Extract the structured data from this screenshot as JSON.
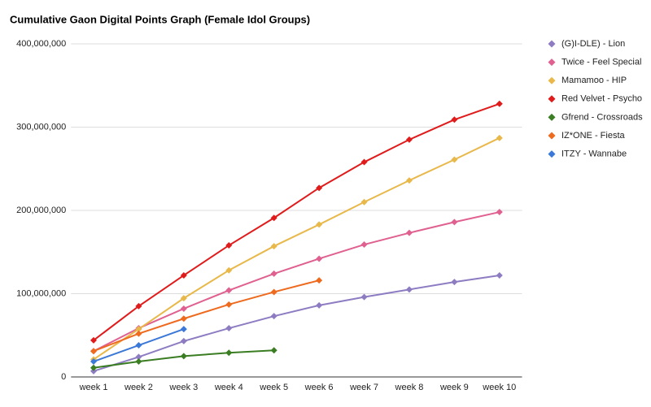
{
  "chart_data": {
    "type": "line",
    "title": "Cumulative Gaon Digital Points Graph (Female Idol Groups)",
    "categories": [
      "week 1",
      "week 2",
      "week 3",
      "week 4",
      "week 5",
      "week 6",
      "week 7",
      "week 8",
      "week 9",
      "week 10"
    ],
    "series": [
      {
        "name": "(G)I-DLE) - Lion",
        "color": "#8e7cc3",
        "values": [
          7000000,
          24000000,
          43000000,
          58500000,
          73000000,
          86000000,
          96000000,
          105000000,
          114000000,
          122000000
        ]
      },
      {
        "name": "Twice - Feel Special",
        "color": "#e06090",
        "values": [
          31000000,
          58500000,
          82000000,
          104000000,
          124000000,
          142000000,
          159000000,
          173000000,
          186000000,
          198000000
        ]
      },
      {
        "name": "Mamamoo - HIP",
        "color": "#e8b84a",
        "values": [
          21000000,
          57500000,
          94500000,
          128000000,
          157000000,
          183000000,
          210000000,
          236000000,
          261000000,
          287000000
        ]
      },
      {
        "name": "Red Velvet - Psycho",
        "color": "#e01b1b",
        "values": [
          44000000,
          85000000,
          122000000,
          158000000,
          191000000,
          227000000,
          258000000,
          285000000,
          309000000,
          328000000
        ]
      },
      {
        "name": "Gfrend - Crossroads",
        "color": "#3a7d22",
        "values": [
          11000000,
          18500000,
          25000000,
          29000000,
          32000000,
          null,
          null,
          null,
          null,
          null
        ]
      },
      {
        "name": "IZ*ONE - Fiesta",
        "color": "#ee6a1f",
        "values": [
          31000000,
          52000000,
          70000000,
          87000000,
          102000000,
          116000000,
          null,
          null,
          null,
          null
        ]
      },
      {
        "name": "ITZY - Wannabe",
        "color": "#3c78d8",
        "values": [
          18500000,
          38000000,
          57500000,
          null,
          null,
          null,
          null,
          null,
          null,
          null
        ]
      }
    ],
    "ylim": [
      0,
      400000000
    ],
    "yticks": [
      0,
      {
        "value": 100000000,
        "label": "100,000,000"
      },
      {
        "value": 200000000,
        "label": "200,000,000"
      },
      {
        "value": 300000000,
        "label": "300,000,000"
      },
      {
        "value": 400000000,
        "label": "400,000,000"
      }
    ],
    "grid": true,
    "legend": "right"
  }
}
